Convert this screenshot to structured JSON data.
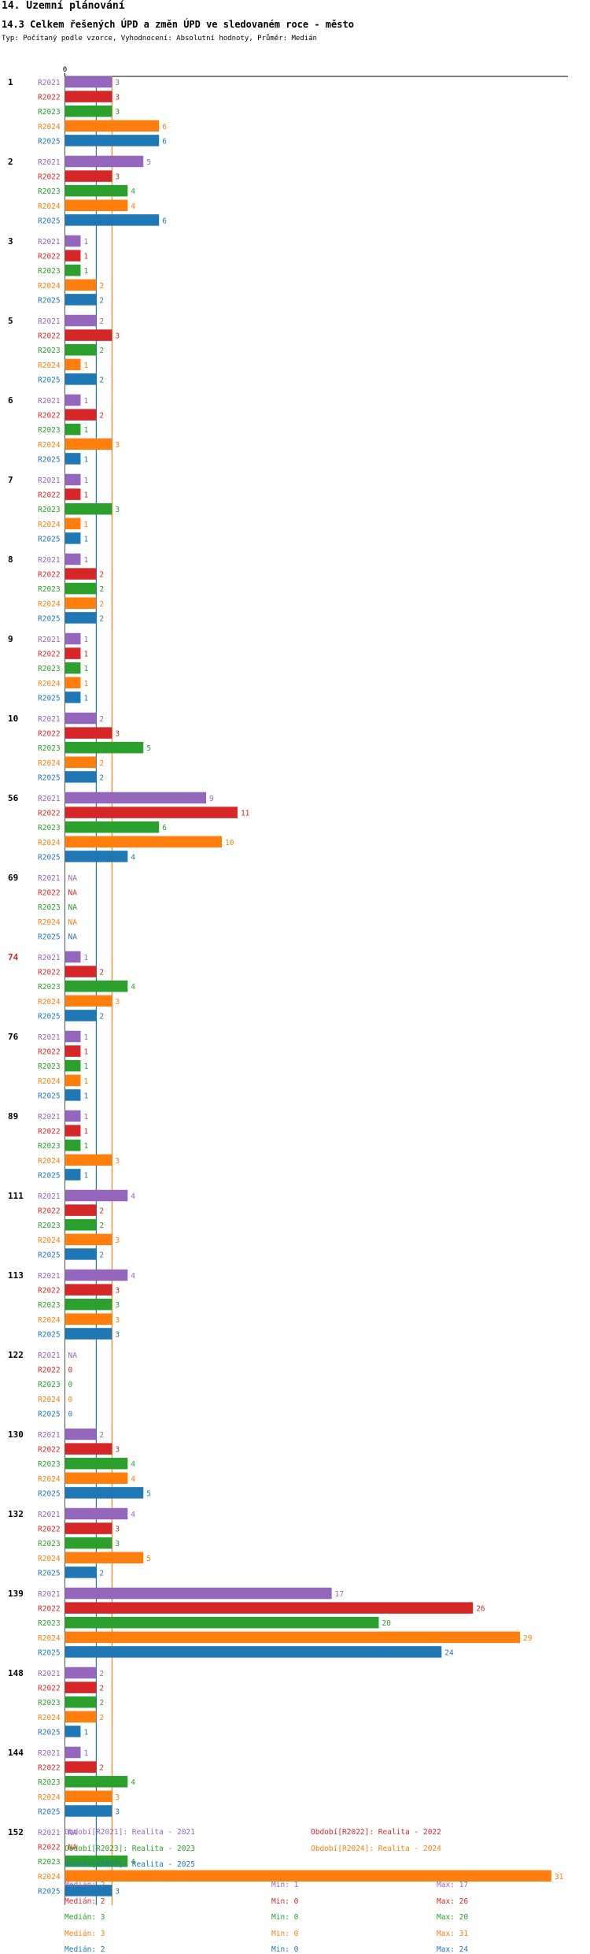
{
  "heading": "14. Územní plánování",
  "title": "14.3 Celkem řešených ÚPD a změn ÚPD ve sledovaném roce - město",
  "subtitle": "Typ: Počítaný podle vzorce, Vyhodnocení: Absolutní hodnoty, Průměr: Medián",
  "colors": {
    "R2021": "#9467bd",
    "R2022": "#d62728",
    "R2023": "#2ca02c",
    "R2024": "#ff7f0e",
    "R2025": "#1f77b4",
    "highlight": "#d62728"
  },
  "chart_data": {
    "type": "bar",
    "orientation": "horizontal",
    "x_tick_labels": [
      "0"
    ],
    "xlim": [
      0,
      31
    ],
    "series_names": [
      "R2021",
      "R2022",
      "R2023",
      "R2024",
      "R2025"
    ],
    "na_label": "NA",
    "highlight_category": "74",
    "median_lines": [
      {
        "series": "R2025",
        "value": 2
      },
      {
        "series": "R2024",
        "value": 3
      }
    ],
    "categories": [
      {
        "label": "1",
        "values": [
          3,
          3,
          3,
          6,
          6
        ]
      },
      {
        "label": "2",
        "values": [
          5,
          3,
          4,
          4,
          6
        ]
      },
      {
        "label": "3",
        "values": [
          1,
          1,
          1,
          2,
          2
        ]
      },
      {
        "label": "5",
        "values": [
          2,
          3,
          2,
          1,
          2
        ]
      },
      {
        "label": "6",
        "values": [
          1,
          2,
          1,
          3,
          1
        ]
      },
      {
        "label": "7",
        "values": [
          1,
          1,
          3,
          1,
          1
        ]
      },
      {
        "label": "8",
        "values": [
          1,
          2,
          2,
          2,
          2
        ]
      },
      {
        "label": "9",
        "values": [
          1,
          1,
          1,
          1,
          1
        ]
      },
      {
        "label": "10",
        "values": [
          2,
          3,
          5,
          2,
          2
        ]
      },
      {
        "label": "56",
        "values": [
          9,
          11,
          6,
          10,
          4
        ]
      },
      {
        "label": "69",
        "values": [
          null,
          null,
          null,
          null,
          null
        ]
      },
      {
        "label": "74",
        "values": [
          1,
          2,
          4,
          3,
          2
        ]
      },
      {
        "label": "76",
        "values": [
          1,
          1,
          1,
          1,
          1
        ]
      },
      {
        "label": "89",
        "values": [
          1,
          1,
          1,
          3,
          1
        ]
      },
      {
        "label": "111",
        "values": [
          4,
          2,
          2,
          3,
          2
        ]
      },
      {
        "label": "113",
        "values": [
          4,
          3,
          3,
          3,
          3
        ]
      },
      {
        "label": "122",
        "values": [
          null,
          0,
          0,
          0,
          0
        ]
      },
      {
        "label": "130",
        "values": [
          2,
          3,
          4,
          4,
          5
        ]
      },
      {
        "label": "132",
        "values": [
          4,
          3,
          3,
          5,
          2
        ]
      },
      {
        "label": "139",
        "values": [
          17,
          26,
          20,
          29,
          24
        ]
      },
      {
        "label": "148",
        "values": [
          2,
          2,
          2,
          2,
          1
        ]
      },
      {
        "label": "144",
        "values": [
          1,
          2,
          4,
          3,
          3
        ]
      },
      {
        "label": "152",
        "values": [
          null,
          null,
          4,
          31,
          3
        ]
      }
    ],
    "legend": [
      {
        "series": "R2021",
        "text": "Období[R2021]: Realita - 2021"
      },
      {
        "series": "R2022",
        "text": "Období[R2022]: Realita - 2022"
      },
      {
        "series": "R2023",
        "text": "Období[R2023]: Realita - 2023"
      },
      {
        "series": "R2024",
        "text": "Období[R2024]: Realita - 2024"
      },
      {
        "series": "R2025",
        "text": "Období[R2025]: Realita - 2025"
      }
    ],
    "stats": [
      {
        "series": "R2021",
        "median": "Medián: 2",
        "min": "Min: 1",
        "max": "Max: 17"
      },
      {
        "series": "R2022",
        "median": "Medián: 2",
        "min": "Min: 0",
        "max": "Max: 26"
      },
      {
        "series": "R2023",
        "median": "Medián: 3",
        "min": "Min: 0",
        "max": "Max: 20"
      },
      {
        "series": "R2024",
        "median": "Medián: 3",
        "min": "Min: 0",
        "max": "Max: 31"
      },
      {
        "series": "R2025",
        "median": "Medián: 2",
        "min": "Min: 0",
        "max": "Max: 24"
      }
    ]
  }
}
